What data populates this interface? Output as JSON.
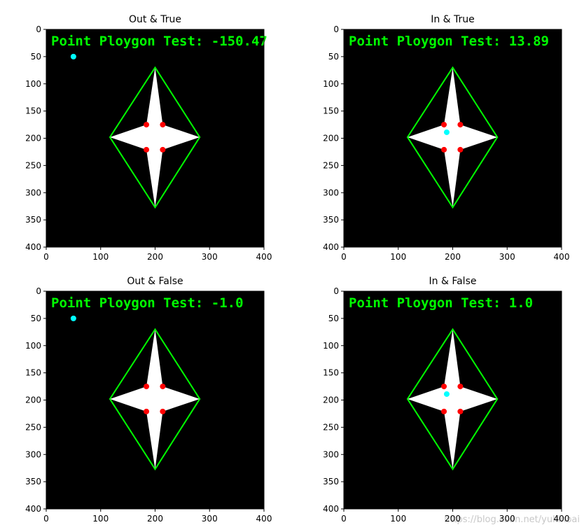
{
  "chart_data": [
    {
      "type": "image",
      "title": "Out & True",
      "annotation": "Point Ploygon Test: -150.47",
      "xlim": [
        0,
        400
      ],
      "ylim": [
        400,
        0
      ],
      "xticks": [
        0,
        100,
        200,
        300,
        400
      ],
      "yticks": [
        0,
        50,
        100,
        150,
        200,
        250,
        300,
        350,
        400
      ],
      "background": "#000000",
      "polygon": {
        "color": "#ffffff",
        "x": [
          200,
          214,
          282,
          214,
          200,
          184,
          117,
          184
        ],
        "y": [
          70,
          175,
          198,
          221,
          327,
          221,
          198,
          175
        ]
      },
      "hull": {
        "color": "#00ff00",
        "x": [
          200,
          282,
          200,
          117
        ],
        "y": [
          70,
          198,
          327,
          198
        ]
      },
      "points": {
        "color": "#ff0000",
        "x": [
          184,
          214,
          184,
          214
        ],
        "y": [
          175,
          175,
          221,
          221
        ]
      },
      "test_point": {
        "color": "#00ffff",
        "x": 50,
        "y": 50
      }
    },
    {
      "type": "image",
      "title": "In & True",
      "annotation": "Point Ploygon Test: 13.89",
      "xlim": [
        0,
        400
      ],
      "ylim": [
        400,
        0
      ],
      "xticks": [
        0,
        100,
        200,
        300,
        400
      ],
      "yticks": [
        0,
        50,
        100,
        150,
        200,
        250,
        300,
        350,
        400
      ],
      "background": "#000000",
      "polygon": {
        "color": "#ffffff",
        "x": [
          200,
          214,
          282,
          214,
          200,
          184,
          117,
          184
        ],
        "y": [
          70,
          175,
          198,
          221,
          327,
          221,
          198,
          175
        ]
      },
      "hull": {
        "color": "#00ff00",
        "x": [
          200,
          282,
          200,
          117
        ],
        "y": [
          70,
          198,
          327,
          198
        ]
      },
      "points": {
        "color": "#ff0000",
        "x": [
          184,
          214,
          184,
          214
        ],
        "y": [
          175,
          175,
          221,
          221
        ]
      },
      "test_point": {
        "color": "#00ffff",
        "x": 189,
        "y": 189
      }
    },
    {
      "type": "image",
      "title": "Out & False",
      "annotation": "Point Ploygon Test: -1.0",
      "xlim": [
        0,
        400
      ],
      "ylim": [
        400,
        0
      ],
      "xticks": [
        0,
        100,
        200,
        300,
        400
      ],
      "yticks": [
        0,
        50,
        100,
        150,
        200,
        250,
        300,
        350,
        400
      ],
      "background": "#000000",
      "polygon": {
        "color": "#ffffff",
        "x": [
          200,
          214,
          282,
          214,
          200,
          184,
          117,
          184
        ],
        "y": [
          70,
          175,
          198,
          221,
          327,
          221,
          198,
          175
        ]
      },
      "hull": {
        "color": "#00ff00",
        "x": [
          200,
          282,
          200,
          117
        ],
        "y": [
          70,
          198,
          327,
          198
        ]
      },
      "points": {
        "color": "#ff0000",
        "x": [
          184,
          214,
          184,
          214
        ],
        "y": [
          175,
          175,
          221,
          221
        ]
      },
      "test_point": {
        "color": "#00ffff",
        "x": 50,
        "y": 50
      }
    },
    {
      "type": "image",
      "title": "In & False",
      "annotation": "Point Ploygon Test: 1.0",
      "xlim": [
        0,
        400
      ],
      "ylim": [
        400,
        0
      ],
      "xticks": [
        0,
        100,
        200,
        300,
        400
      ],
      "yticks": [
        0,
        50,
        100,
        150,
        200,
        250,
        300,
        350,
        400
      ],
      "background": "#000000",
      "polygon": {
        "color": "#ffffff",
        "x": [
          200,
          214,
          282,
          214,
          200,
          184,
          117,
          184
        ],
        "y": [
          70,
          175,
          198,
          221,
          327,
          221,
          198,
          175
        ]
      },
      "hull": {
        "color": "#00ff00",
        "x": [
          200,
          282,
          200,
          117
        ],
        "y": [
          70,
          198,
          327,
          198
        ]
      },
      "points": {
        "color": "#ff0000",
        "x": [
          184,
          214,
          184,
          214
        ],
        "y": [
          175,
          175,
          221,
          221
        ]
      },
      "test_point": {
        "color": "#00ffff",
        "x": 189,
        "y": 189
      }
    }
  ],
  "watermark": "https://blog.csdn.net/yukinoai"
}
